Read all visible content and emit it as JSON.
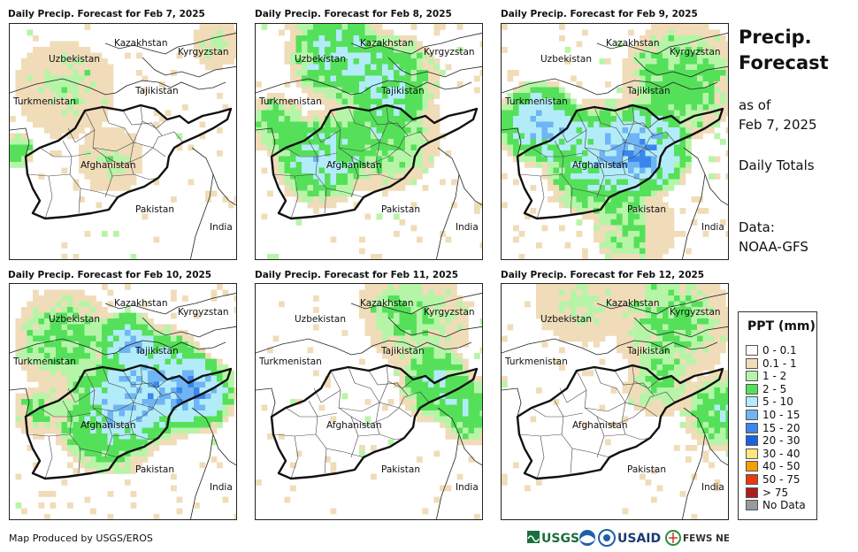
{
  "panels": [
    {
      "title": "Daily Precip. Forecast for Feb 7, 2025",
      "intensity": 0.25
    },
    {
      "title": "Daily Precip. Forecast for Feb 8, 2025",
      "intensity": 0.75
    },
    {
      "title": "Daily Precip. Forecast for Feb 9, 2025",
      "intensity": 0.9
    },
    {
      "title": "Daily Precip. Forecast for Feb 10, 2025",
      "intensity": 0.85
    },
    {
      "title": "Daily Precip. Forecast for Feb 11, 2025",
      "intensity": 0.35
    },
    {
      "title": "Daily Precip. Forecast for Feb 12, 2025",
      "intensity": 0.4
    }
  ],
  "country_labels": {
    "kazakhstan": "Kazakhstan",
    "kyrgyzstan": "Kyrgyzstan",
    "uzbekistan": "Uzbekistan",
    "tajikistan": "Tajikistan",
    "turkmenistan": "Turkmenistan",
    "afghanistan": "Afghanistan",
    "pakistan": "Pakistan",
    "india": "India"
  },
  "side": {
    "title_line1": "Precip.",
    "title_line2": "Forecast",
    "asof_line1": "as of",
    "asof_line2": "Feb 7, 2025",
    "totals": "Daily Totals",
    "data_line1": "Data:",
    "data_line2": "NOAA-GFS"
  },
  "legend": {
    "title": "PPT (mm)",
    "items": [
      {
        "label": "0 - 0.1",
        "color": "#ffffff"
      },
      {
        "label": "0.1 - 1",
        "color": "#f0dcb8"
      },
      {
        "label": "1 - 2",
        "color": "#b6f5a8"
      },
      {
        "label": "2 - 5",
        "color": "#55e05a"
      },
      {
        "label": "5 - 10",
        "color": "#b2ecf8"
      },
      {
        "label": "10 - 15",
        "color": "#6fb4f4"
      },
      {
        "label": "15 - 20",
        "color": "#3b86ee"
      },
      {
        "label": "20 - 30",
        "color": "#1c5fe0"
      },
      {
        "label": "30 - 40",
        "color": "#ffe680"
      },
      {
        "label": "40 - 50",
        "color": "#f5a000"
      },
      {
        "label": "50 - 75",
        "color": "#e83a10"
      },
      {
        "label": "> 75",
        "color": "#b01c1c"
      },
      {
        "label": "No Data",
        "color": "#999999"
      }
    ]
  },
  "credit": "Map Produced by USGS/EROS",
  "logos": {
    "usgs": "USGS",
    "usaid": "USAID",
    "fewsnet": "FEWS NET"
  }
}
